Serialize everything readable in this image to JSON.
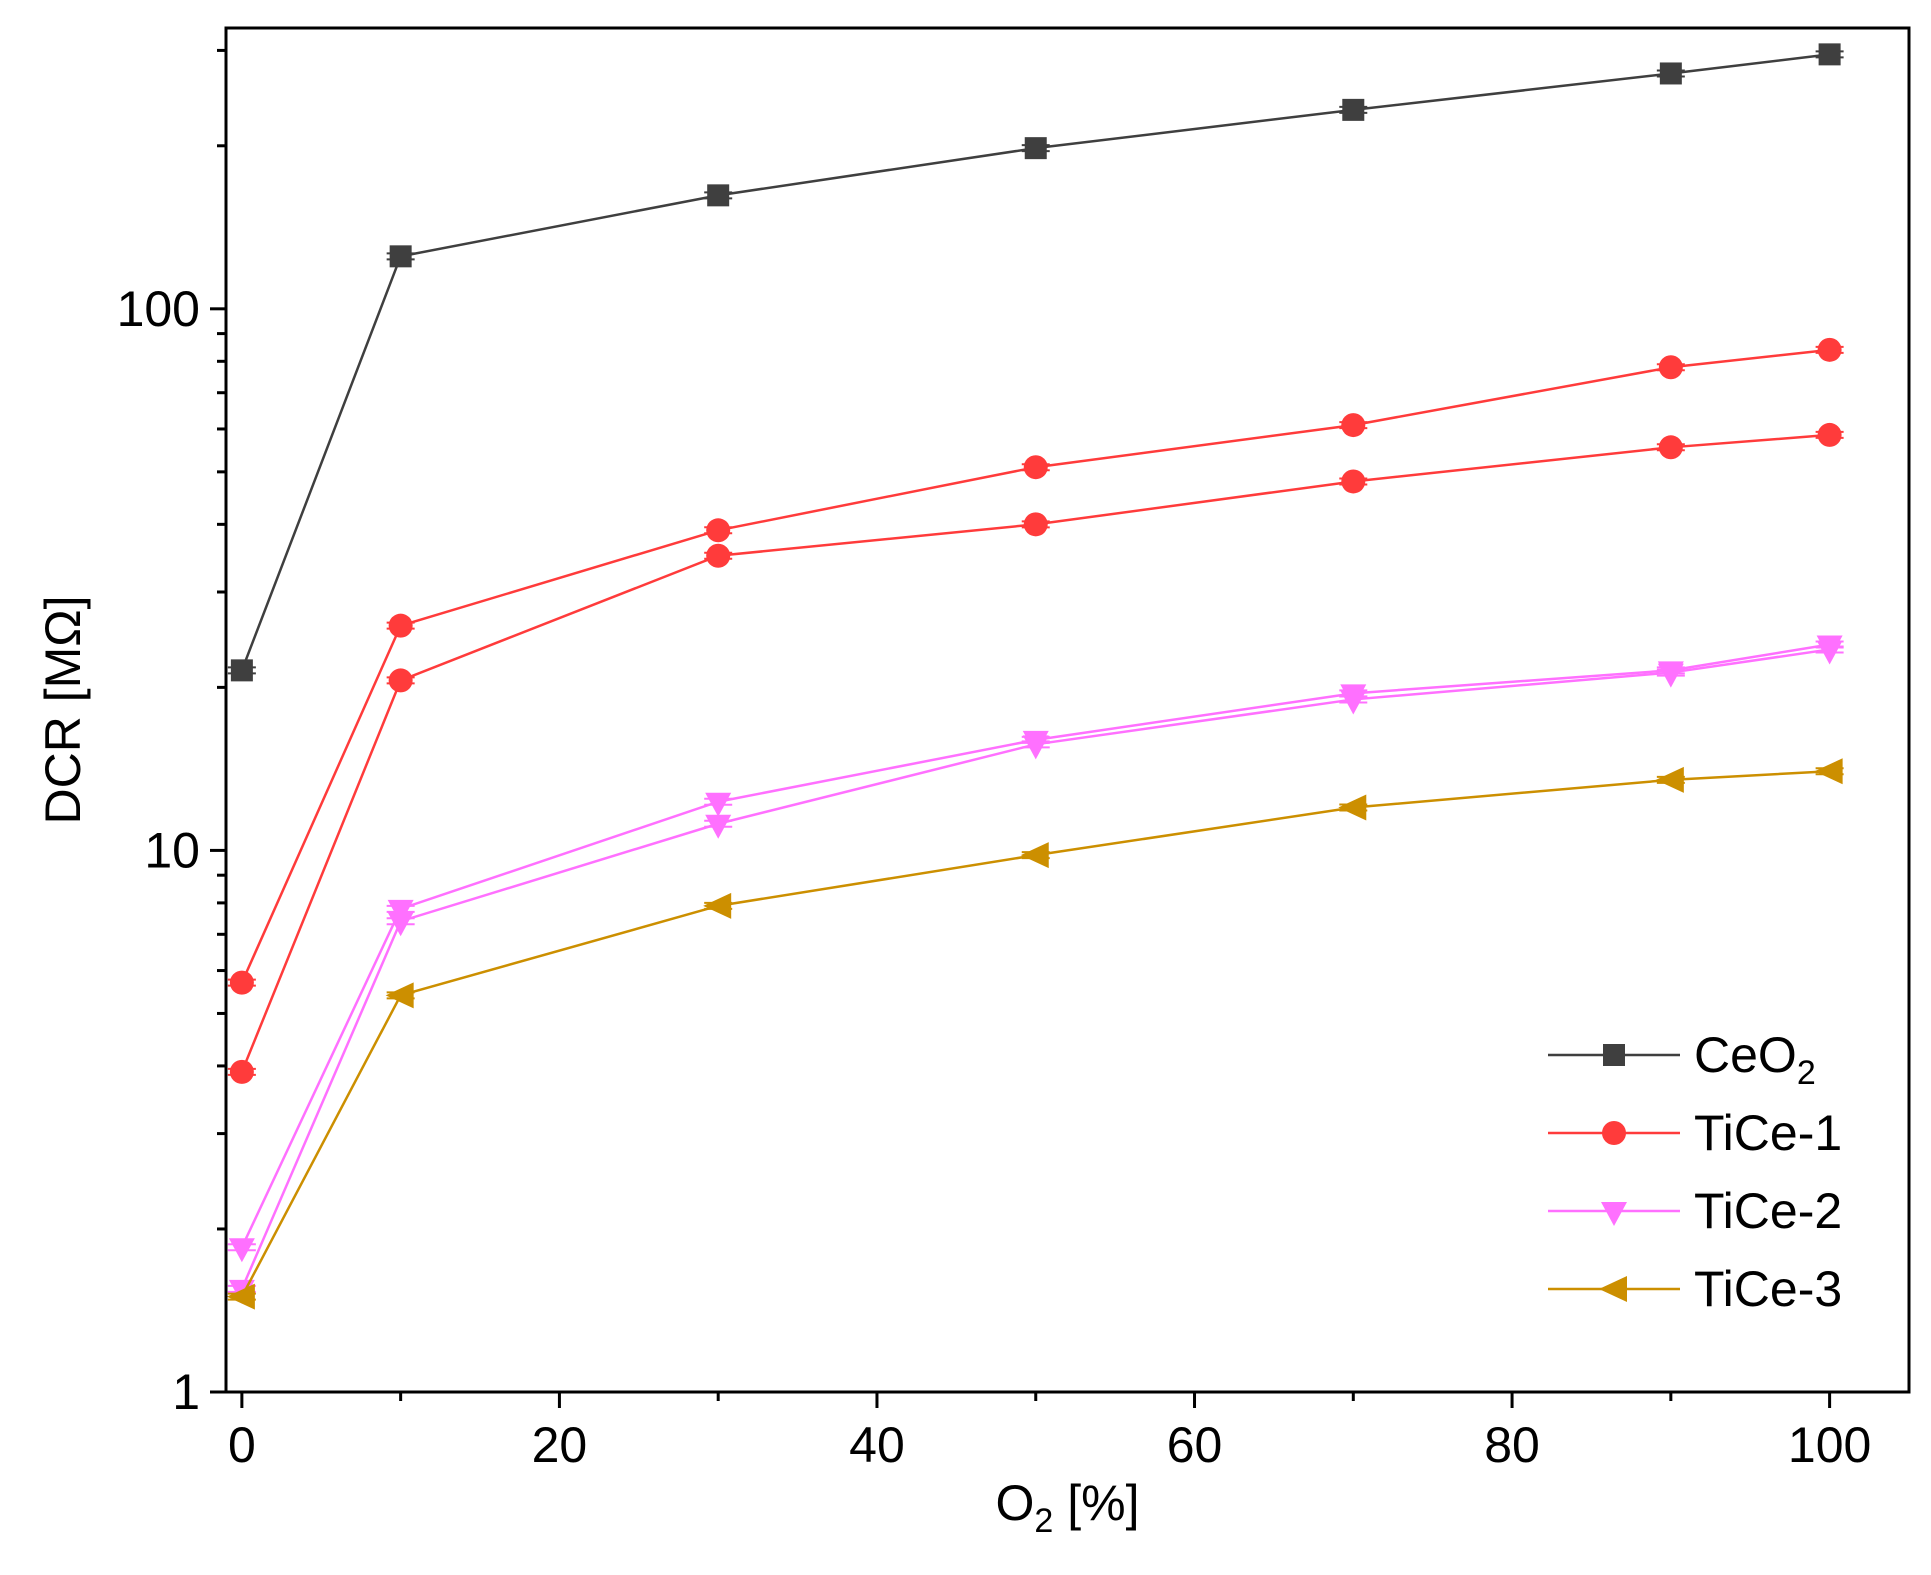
{
  "chart_data": {
    "type": "line",
    "title": "",
    "x": [
      0,
      10,
      30,
      50,
      70,
      90,
      100
    ],
    "xlabel": {
      "main": "O",
      "sub": "2",
      "tail": " [%]"
    },
    "ylabel": "DCR [MΩ]",
    "xlim": [
      -1,
      105
    ],
    "ylim": [
      1,
      330
    ],
    "yscale": "log",
    "xticks": [
      0,
      20,
      40,
      60,
      80,
      100
    ],
    "xtick_labels": [
      "0",
      "20",
      "40",
      "60",
      "80",
      "100"
    ],
    "yticks": [
      1,
      10,
      100
    ],
    "ytick_labels": [
      "1",
      "10",
      "100"
    ],
    "legend_position": "bottom-right",
    "series": [
      {
        "name": "CeO2",
        "legend_main": "CeO",
        "legend_sub": "2",
        "color": "#3f3f3f",
        "marker": "square",
        "values": [
          21.5,
          125,
          162,
          198,
          233,
          272,
          295
        ]
      },
      {
        "name": "TiCe-1",
        "legend_main": "TiCe-1",
        "legend_sub": "",
        "color": "#ff3b3b",
        "marker": "circle",
        "values": [
          5.7,
          26,
          39,
          51,
          61,
          78,
          84
        ]
      },
      {
        "name": "TiCe-1 (b)",
        "show_in_legend": false,
        "color": "#ff3b3b",
        "marker": "circle",
        "values": [
          3.9,
          20.6,
          35,
          40,
          48,
          55.5,
          58.5
        ]
      },
      {
        "name": "TiCe-2",
        "legend_main": "TiCe-2",
        "legend_sub": "",
        "color": "#ff70ff",
        "marker": "triangle-down",
        "values": [
          1.85,
          7.8,
          12.3,
          16,
          19.5,
          21.5,
          24
        ]
      },
      {
        "name": "TiCe-2 (b)",
        "show_in_legend": false,
        "color": "#ff70ff",
        "marker": "triangle-down",
        "values": [
          1.55,
          7.4,
          11.2,
          15.7,
          19,
          21.3,
          23.5
        ]
      },
      {
        "name": "TiCe-3",
        "legend_main": "TiCe-3",
        "legend_sub": "",
        "color": "#cc8f00",
        "marker": "triangle-left",
        "values": [
          1.5,
          5.4,
          7.9,
          9.8,
          12,
          13.5,
          14
        ]
      }
    ]
  }
}
